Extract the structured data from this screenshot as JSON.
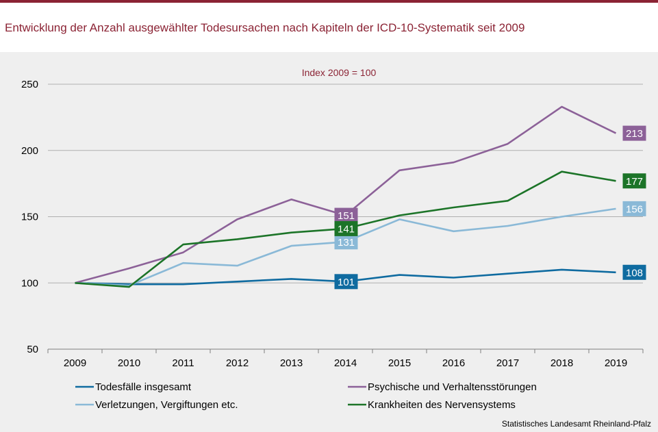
{
  "title": "Entwicklung der Anzahl ausgewählter Todesursachen nach Kapiteln der ICD-10-Systematik seit 2009",
  "source": "Statistisches Landesamt Rheinland-Pfalz",
  "chart_data": {
    "type": "line",
    "subtitle": "Index  2009 = 100",
    "x": [
      "2009",
      "2010",
      "2011",
      "2012",
      "2013",
      "2014",
      "2015",
      "2016",
      "2017",
      "2018",
      "2019"
    ],
    "ylim": [
      50,
      250
    ],
    "yticks": [
      50,
      100,
      150,
      200,
      250
    ],
    "grid": true,
    "series": [
      {
        "name": "Todesfälle insgesamt",
        "color": "#0f6ba0",
        "values": [
          100,
          99,
          99,
          101,
          103,
          101,
          106,
          104,
          107,
          110,
          108
        ],
        "labels": [
          {
            "index": 5,
            "text": "101"
          },
          {
            "index": 10,
            "text": "108"
          }
        ]
      },
      {
        "name": "Psychische und Verhaltensstörungen",
        "color": "#8c6198",
        "values": [
          100,
          111,
          123,
          148,
          163,
          151,
          185,
          191,
          205,
          233,
          213
        ],
        "labels": [
          {
            "index": 5,
            "text": "151"
          },
          {
            "index": 10,
            "text": "213"
          }
        ]
      },
      {
        "name": "Verletzungen, Vergiftungen etc.",
        "color": "#8ab9d7",
        "values": [
          100,
          98,
          115,
          113,
          128,
          131,
          148,
          139,
          143,
          150,
          156
        ],
        "labels": [
          {
            "index": 5,
            "text": "131"
          },
          {
            "index": 10,
            "text": "156"
          }
        ]
      },
      {
        "name": "Krankheiten des Nervensystems",
        "color": "#1c7428",
        "values": [
          100,
          97,
          129,
          133,
          138,
          141,
          151,
          157,
          162,
          184,
          177
        ],
        "labels": [
          {
            "index": 5,
            "text": "141"
          },
          {
            "index": 10,
            "text": "177"
          }
        ]
      }
    ]
  }
}
